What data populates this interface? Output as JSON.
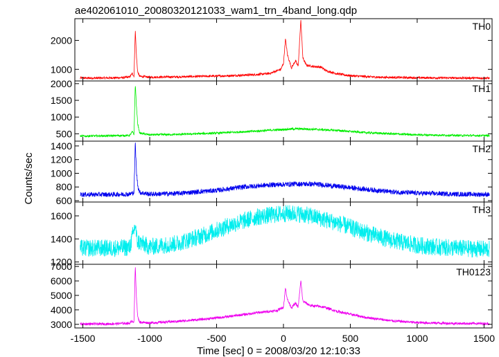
{
  "title": "ae402061010_20080320121033_wam1_trn_4band_long.qdp",
  "ylabel": "Counts/sec",
  "xlabel": "Time [sec] 0 = 2008/03/20 12:10:33",
  "chart_data": {
    "type": "line",
    "title": "ae402061010_20080320121033_wam1_trn_4band_long.qdp",
    "xlabel": "Time [sec] 0 = 2008/03/20 12:10:33",
    "ylabel": "Counts/sec",
    "xlim": [
      -1560,
      1560
    ],
    "xticks": [
      -1500,
      -1000,
      -500,
      0,
      500,
      1000,
      1500
    ],
    "grid": false,
    "panels": [
      {
        "name": "TH0",
        "color": "#ff0000",
        "ylim": [
          600,
          2750
        ],
        "yticks": [
          1000,
          2000
        ],
        "points": [
          {
            "x": -1520,
            "y": 700
          },
          {
            "x": -1400,
            "y": 700
          },
          {
            "x": -1300,
            "y": 705
          },
          {
            "x": -1200,
            "y": 715
          },
          {
            "x": -1150,
            "y": 740
          },
          {
            "x": -1130,
            "y": 860
          },
          {
            "x": -1118,
            "y": 760
          },
          {
            "x": -1108,
            "y": 2350
          },
          {
            "x": -1100,
            "y": 1500
          },
          {
            "x": -1090,
            "y": 900
          },
          {
            "x": -1075,
            "y": 760
          },
          {
            "x": -1000,
            "y": 730
          },
          {
            "x": -800,
            "y": 740
          },
          {
            "x": -600,
            "y": 760
          },
          {
            "x": -400,
            "y": 780
          },
          {
            "x": -200,
            "y": 820
          },
          {
            "x": -100,
            "y": 860
          },
          {
            "x": -50,
            "y": 950
          },
          {
            "x": -20,
            "y": 1000
          },
          {
            "x": 0,
            "y": 1200
          },
          {
            "x": 15,
            "y": 2050
          },
          {
            "x": 30,
            "y": 1500
          },
          {
            "x": 60,
            "y": 1050
          },
          {
            "x": 90,
            "y": 1300
          },
          {
            "x": 110,
            "y": 1100
          },
          {
            "x": 130,
            "y": 2700
          },
          {
            "x": 145,
            "y": 1400
          },
          {
            "x": 170,
            "y": 1150
          },
          {
            "x": 220,
            "y": 1100
          },
          {
            "x": 280,
            "y": 1080
          },
          {
            "x": 320,
            "y": 950
          },
          {
            "x": 400,
            "y": 850
          },
          {
            "x": 500,
            "y": 780
          },
          {
            "x": 700,
            "y": 730
          },
          {
            "x": 1000,
            "y": 710
          },
          {
            "x": 1200,
            "y": 705
          },
          {
            "x": 1400,
            "y": 700
          },
          {
            "x": 1540,
            "y": 700
          }
        ]
      },
      {
        "name": "TH1",
        "color": "#00ee00",
        "ylim": [
          280,
          2080
        ],
        "yticks": [
          500,
          1000,
          1500,
          2000
        ],
        "points": [
          {
            "x": -1520,
            "y": 430
          },
          {
            "x": -1300,
            "y": 440
          },
          {
            "x": -1150,
            "y": 450
          },
          {
            "x": -1130,
            "y": 560
          },
          {
            "x": -1118,
            "y": 480
          },
          {
            "x": -1108,
            "y": 2000
          },
          {
            "x": -1100,
            "y": 1350
          },
          {
            "x": -1090,
            "y": 800
          },
          {
            "x": -1075,
            "y": 520
          },
          {
            "x": -1000,
            "y": 470
          },
          {
            "x": -800,
            "y": 480
          },
          {
            "x": -500,
            "y": 520
          },
          {
            "x": -200,
            "y": 580
          },
          {
            "x": 0,
            "y": 630
          },
          {
            "x": 100,
            "y": 650
          },
          {
            "x": 200,
            "y": 640
          },
          {
            "x": 400,
            "y": 600
          },
          {
            "x": 600,
            "y": 540
          },
          {
            "x": 800,
            "y": 500
          },
          {
            "x": 1000,
            "y": 470
          },
          {
            "x": 1300,
            "y": 450
          },
          {
            "x": 1540,
            "y": 445
          }
        ]
      },
      {
        "name": "TH2",
        "color": "#0000ee",
        "ylim": [
          580,
          1470
        ],
        "yticks": [
          600,
          800,
          1000,
          1200,
          1400
        ],
        "points": [
          {
            "x": -1520,
            "y": 690
          },
          {
            "x": -1300,
            "y": 690
          },
          {
            "x": -1150,
            "y": 695
          },
          {
            "x": -1118,
            "y": 720
          },
          {
            "x": -1108,
            "y": 1450
          },
          {
            "x": -1100,
            "y": 1050
          },
          {
            "x": -1090,
            "y": 820
          },
          {
            "x": -1075,
            "y": 720
          },
          {
            "x": -1000,
            "y": 695
          },
          {
            "x": -800,
            "y": 705
          },
          {
            "x": -500,
            "y": 750
          },
          {
            "x": -300,
            "y": 800
          },
          {
            "x": -100,
            "y": 830
          },
          {
            "x": 100,
            "y": 845
          },
          {
            "x": 250,
            "y": 840
          },
          {
            "x": 400,
            "y": 810
          },
          {
            "x": 600,
            "y": 770
          },
          {
            "x": 800,
            "y": 730
          },
          {
            "x": 1000,
            "y": 710
          },
          {
            "x": 1300,
            "y": 695
          },
          {
            "x": 1540,
            "y": 690
          }
        ]
      },
      {
        "name": "TH3",
        "color": "#00eeee",
        "ylim": [
          1180,
          1720
        ],
        "yticks": [
          1200,
          1400,
          1600
        ],
        "points": [
          {
            "x": -1520,
            "y": 1320
          },
          {
            "x": -1300,
            "y": 1320
          },
          {
            "x": -1150,
            "y": 1325
          },
          {
            "x": -1108,
            "y": 1520
          },
          {
            "x": -1095,
            "y": 1380
          },
          {
            "x": -1000,
            "y": 1330
          },
          {
            "x": -800,
            "y": 1360
          },
          {
            "x": -600,
            "y": 1430
          },
          {
            "x": -400,
            "y": 1520
          },
          {
            "x": -200,
            "y": 1590
          },
          {
            "x": 0,
            "y": 1620
          },
          {
            "x": 100,
            "y": 1620
          },
          {
            "x": 200,
            "y": 1600
          },
          {
            "x": 400,
            "y": 1540
          },
          {
            "x": 600,
            "y": 1460
          },
          {
            "x": 800,
            "y": 1390
          },
          {
            "x": 1000,
            "y": 1345
          },
          {
            "x": 1200,
            "y": 1325
          },
          {
            "x": 1400,
            "y": 1315
          },
          {
            "x": 1540,
            "y": 1310
          }
        ]
      },
      {
        "name": "TH0123",
        "color": "#ee00ee",
        "ylim": [
          2750,
          7150
        ],
        "yticks": [
          3000,
          4000,
          5000,
          6000,
          7000
        ],
        "points": [
          {
            "x": -1520,
            "y": 3020
          },
          {
            "x": -1300,
            "y": 3030
          },
          {
            "x": -1150,
            "y": 3080
          },
          {
            "x": -1130,
            "y": 3250
          },
          {
            "x": -1118,
            "y": 3150
          },
          {
            "x": -1108,
            "y": 7050
          },
          {
            "x": -1100,
            "y": 5000
          },
          {
            "x": -1090,
            "y": 3500
          },
          {
            "x": -1075,
            "y": 3150
          },
          {
            "x": -1000,
            "y": 3100
          },
          {
            "x": -800,
            "y": 3200
          },
          {
            "x": -600,
            "y": 3350
          },
          {
            "x": -400,
            "y": 3550
          },
          {
            "x": -200,
            "y": 3800
          },
          {
            "x": -50,
            "y": 3950
          },
          {
            "x": 0,
            "y": 4200
          },
          {
            "x": 15,
            "y": 5500
          },
          {
            "x": 30,
            "y": 4700
          },
          {
            "x": 60,
            "y": 4150
          },
          {
            "x": 90,
            "y": 4450
          },
          {
            "x": 110,
            "y": 4200
          },
          {
            "x": 130,
            "y": 6000
          },
          {
            "x": 145,
            "y": 4600
          },
          {
            "x": 200,
            "y": 4300
          },
          {
            "x": 300,
            "y": 4200
          },
          {
            "x": 400,
            "y": 3900
          },
          {
            "x": 600,
            "y": 3500
          },
          {
            "x": 800,
            "y": 3250
          },
          {
            "x": 1000,
            "y": 3120
          },
          {
            "x": 1300,
            "y": 3060
          },
          {
            "x": 1540,
            "y": 3050
          }
        ]
      }
    ]
  }
}
